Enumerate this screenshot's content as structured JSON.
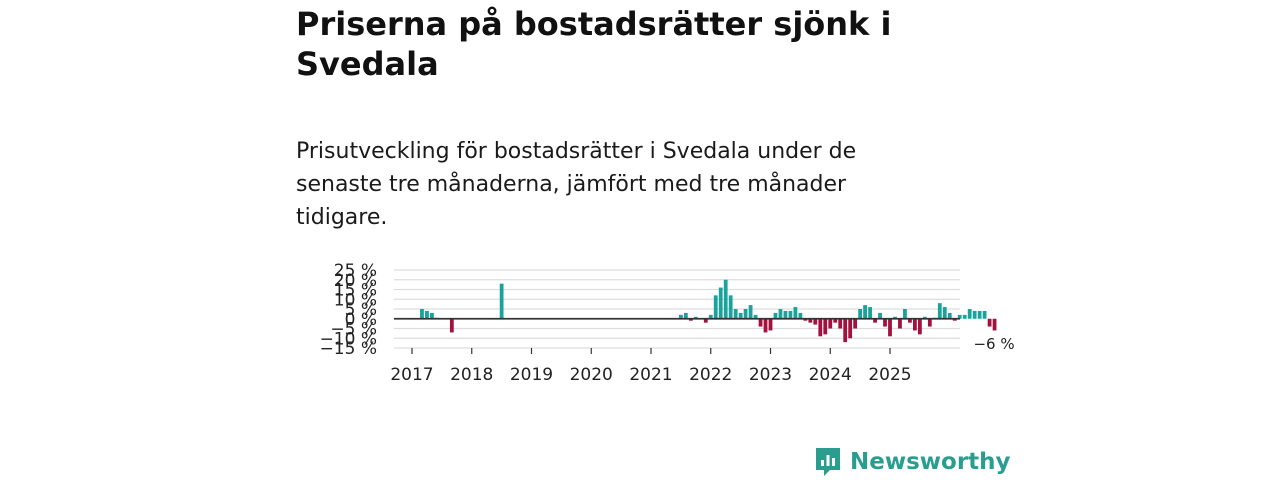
{
  "header": {
    "title": "Priserna på bostadsrätter sjönk i Svedala",
    "subtitle": "Prisutveckling för bostadsrätter i Svedala under de senaste tre månaderna, jämfört med tre månader tidigare."
  },
  "brand": {
    "name": "Newsworthy",
    "color": "#2a9d8f"
  },
  "colors": {
    "positive": "#1aa39a",
    "negative": "#a3123f",
    "grid": "#dddddd",
    "zero": "#333333"
  },
  "chart_data": {
    "type": "bar",
    "title": "",
    "xlabel": "",
    "ylabel": "",
    "ylim": [
      -15,
      25
    ],
    "y_ticks": [
      {
        "value": 25,
        "label": "25 %"
      },
      {
        "value": 20,
        "label": "20 %"
      },
      {
        "value": 15,
        "label": "15 %"
      },
      {
        "value": 10,
        "label": "10 %"
      },
      {
        "value": 5,
        "label": "5 %"
      },
      {
        "value": 0,
        "label": "0 %"
      },
      {
        "value": -5,
        "label": "−5 %"
      },
      {
        "value": -10,
        "label": "−10 %"
      },
      {
        "value": -15,
        "label": "−15 %"
      }
    ],
    "x_ticks": [
      "2017",
      "2018",
      "2019",
      "2020",
      "2021",
      "2022",
      "2023",
      "2024",
      "2025"
    ],
    "start_year": 2017,
    "start_month": 1,
    "last_label": "−6 %",
    "values": [
      null,
      null,
      5,
      4,
      3,
      0.5,
      null,
      null,
      -7,
      null,
      null,
      null,
      null,
      null,
      null,
      null,
      null,
      null,
      18,
      null,
      null,
      null,
      null,
      null,
      null,
      null,
      null,
      null,
      null,
      null,
      null,
      null,
      null,
      null,
      null,
      null,
      null,
      null,
      null,
      null,
      null,
      null,
      null,
      null,
      null,
      null,
      null,
      null,
      null,
      null,
      null,
      null,
      null,
      null,
      2,
      3,
      -1,
      1,
      null,
      -2,
      2,
      12,
      16,
      20,
      12,
      5,
      3,
      5,
      7,
      2,
      -4,
      -7,
      -6,
      3,
      5,
      4,
      4,
      6,
      3,
      -1,
      -2,
      -3,
      -9,
      -8,
      -5,
      -2,
      -5,
      -12,
      -10,
      -5,
      5,
      7,
      6,
      -2,
      3,
      -4,
      -9,
      1,
      -5,
      5,
      -2,
      -6,
      -8,
      1,
      -4,
      0.5,
      8,
      6,
      3,
      -1,
      2,
      2,
      5,
      4,
      4,
      4,
      -4,
      -6
    ]
  }
}
